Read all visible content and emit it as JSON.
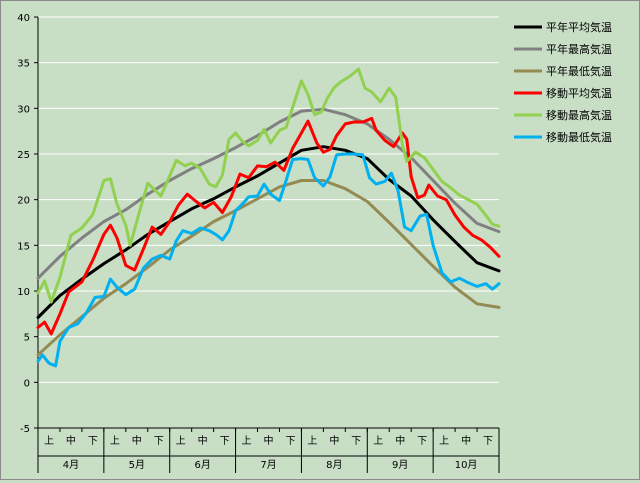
{
  "chart_data": {
    "type": "line",
    "ylim": [
      -5,
      40
    ],
    "yticks": [
      -5,
      0,
      5,
      10,
      15,
      20,
      25,
      30,
      35,
      40
    ],
    "grid": true,
    "legend_position": "right",
    "periods": [
      "上",
      "中",
      "下",
      "上",
      "中",
      "下",
      "上",
      "中",
      "下",
      "上",
      "中",
      "下",
      "上",
      "中",
      "下",
      "上",
      "中",
      "下",
      "上",
      "中",
      "下"
    ],
    "months": [
      "4月",
      "5月",
      "6月",
      "7月",
      "8月",
      "9月",
      "10月"
    ],
    "x_range": [
      0,
      21
    ],
    "colors": {
      "background": "#c8dfc6",
      "grid": "#ffffff",
      "平年平均気温": "#000000",
      "平年最高気温": "#808080",
      "平年最低気温": "#948a54",
      "移動平均気温": "#ff0000",
      "移動最高気温": "#92d050",
      "移動最低気温": "#00b0f0"
    },
    "series": [
      {
        "name": "平年平均気温",
        "color": "#000000",
        "points": [
          [
            0,
            7.1
          ],
          [
            1,
            9.5
          ],
          [
            2,
            11.3
          ],
          [
            3,
            13
          ],
          [
            4,
            14.5
          ],
          [
            5,
            16.2
          ],
          [
            6,
            17.6
          ],
          [
            7,
            19
          ],
          [
            8,
            20.1
          ],
          [
            9,
            21.4
          ],
          [
            10,
            22.6
          ],
          [
            11,
            24
          ],
          [
            12,
            25.4
          ],
          [
            13,
            25.8
          ],
          [
            14,
            25.4
          ],
          [
            15,
            24.5
          ],
          [
            16,
            22.2
          ],
          [
            17,
            20.4
          ],
          [
            18,
            17.8
          ],
          [
            19,
            15.4
          ],
          [
            20,
            13.1
          ],
          [
            21,
            12.2
          ]
        ]
      },
      {
        "name": "平年最高気温",
        "color": "#808080",
        "points": [
          [
            0,
            11.4
          ],
          [
            1,
            13.8
          ],
          [
            2,
            15.8
          ],
          [
            3,
            17.6
          ],
          [
            4,
            18.9
          ],
          [
            5,
            20.6
          ],
          [
            6,
            22.1
          ],
          [
            7,
            23.4
          ],
          [
            8,
            24.5
          ],
          [
            9,
            25.7
          ],
          [
            10,
            27.0
          ],
          [
            11,
            28.5
          ],
          [
            12,
            29.7
          ],
          [
            13,
            29.9
          ],
          [
            14,
            29.3
          ],
          [
            15,
            28.3
          ],
          [
            16,
            26.6
          ],
          [
            17,
            24.6
          ],
          [
            18,
            22.1
          ],
          [
            19,
            19.6
          ],
          [
            20,
            17.4
          ],
          [
            21,
            16.5
          ]
        ]
      },
      {
        "name": "平年最低気温",
        "color": "#948a54",
        "points": [
          [
            0,
            3.0
          ],
          [
            1,
            5.2
          ],
          [
            2,
            7.2
          ],
          [
            3,
            9.2
          ],
          [
            4,
            10.8
          ],
          [
            5,
            12.6
          ],
          [
            6,
            14.5
          ],
          [
            7,
            16.0
          ],
          [
            8,
            17.6
          ],
          [
            9,
            18.8
          ],
          [
            10,
            20.1
          ],
          [
            11,
            21.4
          ],
          [
            12,
            22.1
          ],
          [
            13,
            22.1
          ],
          [
            14,
            21.2
          ],
          [
            15,
            19.8
          ],
          [
            16,
            17.5
          ],
          [
            17,
            15.1
          ],
          [
            18,
            12.7
          ],
          [
            19,
            10.4
          ],
          [
            20,
            8.6
          ],
          [
            21,
            8.2
          ]
        ]
      },
      {
        "name": "移動平均気温",
        "color": "#ff0000",
        "points": [
          [
            0,
            6.0
          ],
          [
            0.3,
            6.6
          ],
          [
            0.6,
            5.3
          ],
          [
            1.0,
            7.5
          ],
          [
            1.4,
            9.9
          ],
          [
            2.0,
            11.0
          ],
          [
            2.5,
            13.4
          ],
          [
            3.0,
            16.2
          ],
          [
            3.3,
            17.2
          ],
          [
            3.6,
            15.8
          ],
          [
            4.0,
            12.8
          ],
          [
            4.4,
            12.3
          ],
          [
            4.8,
            14.6
          ],
          [
            5.2,
            17.0
          ],
          [
            5.6,
            16.2
          ],
          [
            6.0,
            17.6
          ],
          [
            6.4,
            19.4
          ],
          [
            6.8,
            20.6
          ],
          [
            7.2,
            19.8
          ],
          [
            7.6,
            19.1
          ],
          [
            8.0,
            19.7
          ],
          [
            8.4,
            18.6
          ],
          [
            8.8,
            20.3
          ],
          [
            9.2,
            22.8
          ],
          [
            9.6,
            22.4
          ],
          [
            10.0,
            23.7
          ],
          [
            10.4,
            23.6
          ],
          [
            10.8,
            24.1
          ],
          [
            11.2,
            23.2
          ],
          [
            11.6,
            25.6
          ],
          [
            12.0,
            27.3
          ],
          [
            12.3,
            28.6
          ],
          [
            12.7,
            26.2
          ],
          [
            13.0,
            25.2
          ],
          [
            13.3,
            25.5
          ],
          [
            13.6,
            27.0
          ],
          [
            14.0,
            28.3
          ],
          [
            14.4,
            28.5
          ],
          [
            14.8,
            28.5
          ],
          [
            15.2,
            28.9
          ],
          [
            15.4,
            27.6
          ],
          [
            15.8,
            26.5
          ],
          [
            16.2,
            25.8
          ],
          [
            16.6,
            27.3
          ],
          [
            16.8,
            26.6
          ],
          [
            17.0,
            22.5
          ],
          [
            17.3,
            20.2
          ],
          [
            17.6,
            20.5
          ],
          [
            17.8,
            21.6
          ],
          [
            18.2,
            20.4
          ],
          [
            18.6,
            20.0
          ],
          [
            19.0,
            18.3
          ],
          [
            19.4,
            17.0
          ],
          [
            19.8,
            16.1
          ],
          [
            20.2,
            15.6
          ],
          [
            20.6,
            14.8
          ],
          [
            21.0,
            13.8
          ]
        ]
      },
      {
        "name": "移動最高気温",
        "color": "#92d050",
        "points": [
          [
            0,
            9.8
          ],
          [
            0.3,
            11.1
          ],
          [
            0.6,
            8.8
          ],
          [
            1.0,
            11.5
          ],
          [
            1.5,
            16.1
          ],
          [
            2.0,
            16.9
          ],
          [
            2.5,
            18.4
          ],
          [
            3.0,
            22.1
          ],
          [
            3.3,
            22.3
          ],
          [
            3.6,
            19.5
          ],
          [
            4.0,
            17.2
          ],
          [
            4.2,
            15.0
          ],
          [
            4.6,
            18.5
          ],
          [
            5.0,
            21.8
          ],
          [
            5.3,
            21.1
          ],
          [
            5.6,
            20.4
          ],
          [
            6.0,
            22.6
          ],
          [
            6.3,
            24.3
          ],
          [
            6.7,
            23.7
          ],
          [
            7.0,
            24.0
          ],
          [
            7.4,
            23.4
          ],
          [
            7.8,
            21.7
          ],
          [
            8.1,
            21.4
          ],
          [
            8.4,
            22.7
          ],
          [
            8.7,
            26.6
          ],
          [
            9.0,
            27.3
          ],
          [
            9.3,
            26.4
          ],
          [
            9.6,
            25.9
          ],
          [
            10.0,
            26.5
          ],
          [
            10.3,
            27.7
          ],
          [
            10.6,
            26.2
          ],
          [
            11.0,
            27.6
          ],
          [
            11.3,
            27.9
          ],
          [
            11.6,
            30.1
          ],
          [
            12.0,
            33.0
          ],
          [
            12.3,
            31.5
          ],
          [
            12.6,
            29.3
          ],
          [
            12.9,
            29.6
          ],
          [
            13.2,
            31.2
          ],
          [
            13.5,
            32.3
          ],
          [
            13.8,
            32.9
          ],
          [
            14.2,
            33.5
          ],
          [
            14.6,
            34.3
          ],
          [
            14.9,
            32.2
          ],
          [
            15.2,
            31.8
          ],
          [
            15.6,
            30.7
          ],
          [
            16.0,
            32.2
          ],
          [
            16.3,
            31.2
          ],
          [
            16.6,
            26.0
          ],
          [
            16.8,
            24.2
          ],
          [
            17.2,
            25.2
          ],
          [
            17.6,
            24.6
          ],
          [
            18.0,
            23.3
          ],
          [
            18.4,
            22.0
          ],
          [
            18.8,
            21.3
          ],
          [
            19.2,
            20.5
          ],
          [
            19.6,
            20.0
          ],
          [
            20.0,
            19.5
          ],
          [
            20.4,
            18.3
          ],
          [
            20.7,
            17.3
          ],
          [
            21.0,
            17.1
          ]
        ]
      },
      {
        "name": "移動最低気温",
        "color": "#00b0f0",
        "points": [
          [
            0,
            2.3
          ],
          [
            0.2,
            3.0
          ],
          [
            0.5,
            2.1
          ],
          [
            0.8,
            1.8
          ],
          [
            1.0,
            4.5
          ],
          [
            1.4,
            6.0
          ],
          [
            1.8,
            6.4
          ],
          [
            2.2,
            7.6
          ],
          [
            2.6,
            9.3
          ],
          [
            3.0,
            9.4
          ],
          [
            3.3,
            11.3
          ],
          [
            3.6,
            10.4
          ],
          [
            4.0,
            9.6
          ],
          [
            4.4,
            10.2
          ],
          [
            4.8,
            12.5
          ],
          [
            5.2,
            13.5
          ],
          [
            5.6,
            13.9
          ],
          [
            6.0,
            13.5
          ],
          [
            6.3,
            15.5
          ],
          [
            6.6,
            16.6
          ],
          [
            7.0,
            16.3
          ],
          [
            7.4,
            16.9
          ],
          [
            7.8,
            16.6
          ],
          [
            8.1,
            16.2
          ],
          [
            8.4,
            15.6
          ],
          [
            8.7,
            16.6
          ],
          [
            9.0,
            18.8
          ],
          [
            9.3,
            19.5
          ],
          [
            9.6,
            20.3
          ],
          [
            10.0,
            20.4
          ],
          [
            10.3,
            21.7
          ],
          [
            10.6,
            20.6
          ],
          [
            11.0,
            19.9
          ],
          [
            11.3,
            22.1
          ],
          [
            11.6,
            24.4
          ],
          [
            12.0,
            24.5
          ],
          [
            12.3,
            24.4
          ],
          [
            12.6,
            22.4
          ],
          [
            13.0,
            21.5
          ],
          [
            13.3,
            22.5
          ],
          [
            13.6,
            24.9
          ],
          [
            14.0,
            25.0
          ],
          [
            14.4,
            25.0
          ],
          [
            14.8,
            24.9
          ],
          [
            15.1,
            22.4
          ],
          [
            15.4,
            21.7
          ],
          [
            15.8,
            22.0
          ],
          [
            16.1,
            22.9
          ],
          [
            16.4,
            21.0
          ],
          [
            16.7,
            17.0
          ],
          [
            17.0,
            16.6
          ],
          [
            17.4,
            18.2
          ],
          [
            17.7,
            18.4
          ],
          [
            18.0,
            15.0
          ],
          [
            18.4,
            12.0
          ],
          [
            18.8,
            11.0
          ],
          [
            19.2,
            11.4
          ],
          [
            19.6,
            10.9
          ],
          [
            20.0,
            10.5
          ],
          [
            20.4,
            10.8
          ],
          [
            20.7,
            10.2
          ],
          [
            21.0,
            10.8
          ]
        ]
      }
    ]
  }
}
